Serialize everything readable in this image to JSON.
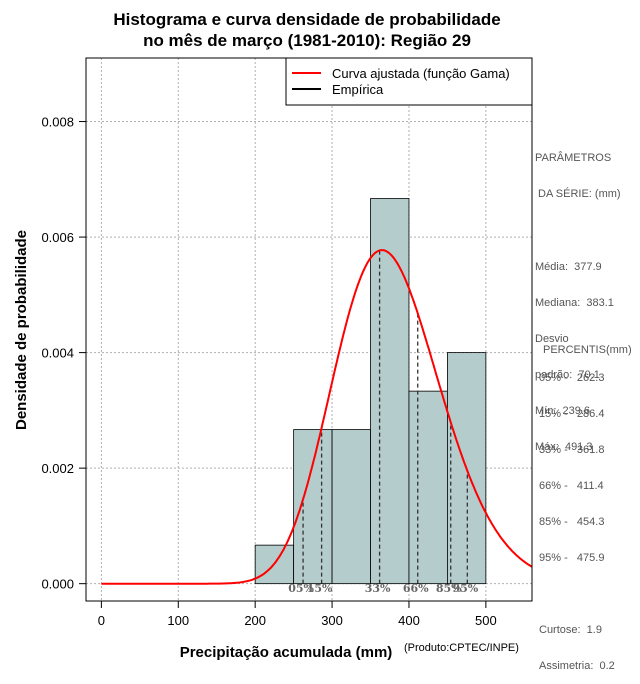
{
  "chart_data": {
    "type": "histogram",
    "title": [
      "Histograma e curva densidade de probabilidade",
      "no mês de março (1981-2010): Região 29"
    ],
    "xlabel": "Precipitação acumulada (mm)",
    "ylabel": "Densidade de probabilidade",
    "credit": "(Produto:CPTEC/INPE)",
    "xlim": [
      -20,
      560
    ],
    "ylim": [
      -0.0003,
      0.0091
    ],
    "x_ticks": [
      0,
      100,
      200,
      300,
      400,
      500
    ],
    "y_ticks": [
      0.0,
      0.002,
      0.004,
      0.006,
      0.008
    ],
    "y_tick_labels": [
      "0.000",
      "0.002",
      "0.004",
      "0.006",
      "0.008"
    ],
    "grid": true,
    "bins": [
      {
        "x0": 200,
        "x1": 250,
        "density": 0.000667
      },
      {
        "x0": 250,
        "x1": 300,
        "density": 0.002667
      },
      {
        "x0": 300,
        "x1": 350,
        "density": 0.002667
      },
      {
        "x0": 350,
        "x1": 400,
        "density": 0.006667
      },
      {
        "x0": 400,
        "x1": 450,
        "density": 0.003333
      },
      {
        "x0": 450,
        "x1": 500,
        "density": 0.004
      }
    ],
    "fitted_curve": {
      "name": "Curva ajustada (função Gama)",
      "distribution": "gamma",
      "mean": 377.9,
      "sd": 70.1,
      "color": "#ff0000"
    },
    "empirical": {
      "name": "Empírica",
      "color": "#000000"
    },
    "percentile_markers": [
      {
        "label": "05%",
        "value": 262.3
      },
      {
        "label": "15%",
        "value": 286.4
      },
      {
        "label": "33%",
        "value": 361.8
      },
      {
        "label": "66%",
        "value": 411.4
      },
      {
        "label": "85%",
        "value": 454.3
      },
      {
        "label": "95%",
        "value": 475.9
      }
    ],
    "legend_position": "top-right",
    "bar_color": "#b4cccc"
  },
  "side_panel": {
    "params_title": [
      "PARÂMETROS",
      " DA SÉRIE: (mm)"
    ],
    "stats": [
      "Média:  377.9",
      "Mediana:  383.1",
      "Desvio",
      "padrão:  70.1",
      "Mín:  239.6",
      "Máx:  491.3"
    ],
    "percentis_title": "PERCENTIS(mm)",
    "percentis": [
      "05% -   262.3",
      "15% -   286.4",
      "33% -   361.8",
      "66% -   411.4",
      "85% -   454.3",
      "95% -   475.9"
    ],
    "extra": [
      "Curtose:  1.9",
      "Assimetria:  0.2"
    ]
  }
}
